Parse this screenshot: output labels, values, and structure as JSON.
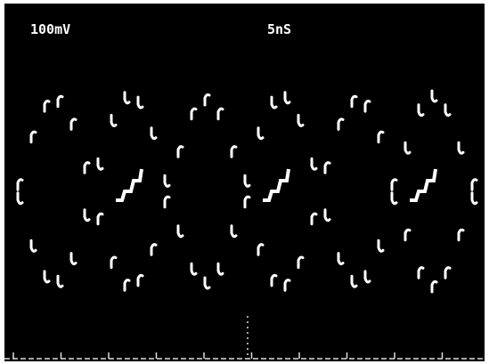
{
  "screen": {
    "vertical_scale": "100mV",
    "time_scale": "5nS"
  }
}
